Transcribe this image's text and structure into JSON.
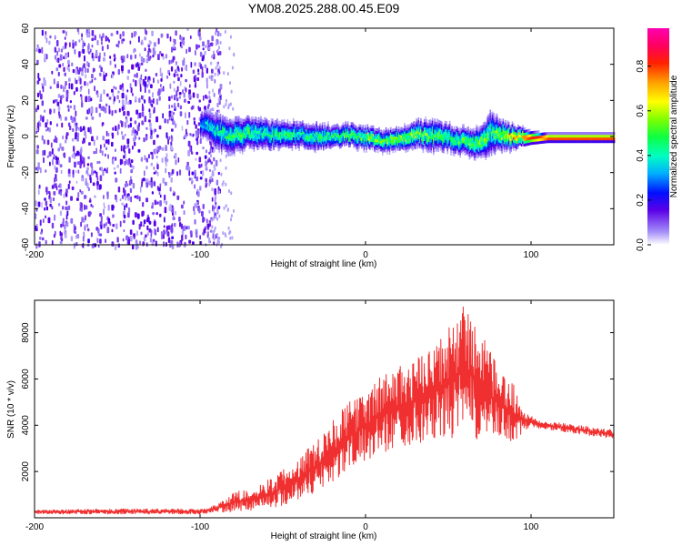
{
  "title": "YM08.2025.288.00.45.E09",
  "chart_data": [
    {
      "type": "heatmap",
      "title": "YM08.2025.288.00.45.E09",
      "xlabel": "Height of straight line (km)",
      "ylabel": "Frequency (Hz)",
      "xlim": [
        -200,
        150
      ],
      "ylim": [
        -60,
        60
      ],
      "x_ticks": [
        "-200",
        "-100",
        "0",
        "100"
      ],
      "y_ticks": [
        "-60",
        "-40",
        "-20",
        "0",
        "20",
        "40",
        "60"
      ],
      "colorbar": {
        "label": "Normalized spectral amplitude",
        "range": [
          0,
          0.97
        ],
        "ticks": [
          "0.0",
          "0.2",
          "0.4",
          "0.6",
          "0.8"
        ]
      },
      "noise_region_x": [
        -200,
        -88
      ],
      "ridge": {
        "description": "narrow band near 0 Hz from about -100 km to 150 km",
        "x": [
          -100,
          -90,
          -80,
          -70,
          -60,
          -50,
          -40,
          -30,
          -20,
          -10,
          0,
          10,
          20,
          30,
          40,
          50,
          60,
          70,
          75,
          80,
          90,
          100,
          110,
          150
        ],
        "center_hz": [
          8,
          3,
          1,
          3,
          2,
          1,
          2,
          1,
          0,
          2,
          0,
          -1,
          -1,
          2,
          1,
          0,
          -2,
          -3,
          3,
          2,
          0,
          0,
          0,
          0
        ],
        "halfwidth_hz": [
          6,
          8,
          8,
          7,
          7,
          6,
          6,
          6,
          5,
          5,
          5,
          5,
          5,
          6,
          7,
          6,
          6,
          7,
          10,
          7,
          5,
          3,
          2,
          2
        ],
        "peak_amplitude": [
          0.35,
          0.45,
          0.5,
          0.5,
          0.45,
          0.5,
          0.45,
          0.5,
          0.5,
          0.55,
          0.6,
          0.55,
          0.6,
          0.6,
          0.55,
          0.5,
          0.55,
          0.6,
          0.5,
          0.6,
          0.75,
          0.85,
          0.9,
          0.9
        ]
      }
    },
    {
      "type": "line",
      "xlabel": "Height of straight line (km)",
      "ylabel": "SNR (10 * v/v)",
      "xlim": [
        -200,
        150
      ],
      "ylim": [
        0,
        9400
      ],
      "x_ticks": [
        "-200",
        "-100",
        "0",
        "100"
      ],
      "y_ticks": [
        "2000",
        "4000",
        "6000",
        "8000"
      ],
      "series": [
        {
          "name": "SNR",
          "color": "#f03030",
          "envelope_x": [
            -200,
            -150,
            -100,
            -90,
            -80,
            -70,
            -60,
            -50,
            -40,
            -30,
            -20,
            -10,
            0,
            10,
            20,
            30,
            40,
            50,
            60,
            70,
            80,
            90,
            95,
            100,
            110,
            120,
            130,
            140,
            150
          ],
          "envelope_low": [
            150,
            150,
            150,
            200,
            250,
            300,
            400,
            500,
            800,
            1000,
            1500,
            2000,
            2400,
            2800,
            3000,
            3200,
            3300,
            3400,
            3400,
            3300,
            3300,
            3200,
            3700,
            3900,
            3800,
            3700,
            3600,
            3500,
            3400
          ],
          "envelope_high": [
            350,
            400,
            400,
            600,
            1100,
            1300,
            1600,
            2100,
            2600,
            3500,
            4300,
            5000,
            5500,
            6200,
            6600,
            6900,
            7300,
            8200,
            9400,
            8000,
            6500,
            5800,
            4700,
            4400,
            4200,
            4100,
            4000,
            3900,
            3800
          ]
        }
      ]
    }
  ]
}
